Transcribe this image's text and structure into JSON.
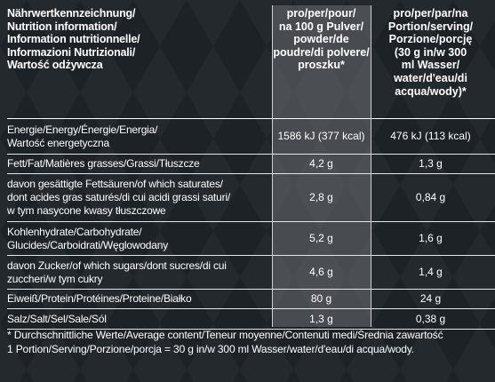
{
  "header": {
    "nutrient_label": [
      "Nährwertkennzeichnung/",
      "Nutrition information/",
      "Information nutritionnelle/",
      "Informazioni Nutrizionali/",
      "Wartość odżywcza"
    ],
    "per100_label": [
      "pro/per/pour/",
      "na 100 g Pulver/",
      "powder/de",
      "poudre/di polvere/",
      "proszku*"
    ],
    "perserving_label": [
      "pro/per/par/na",
      "Portion/serving/",
      "Porzione/porcję",
      "(30 g in/w 300",
      "ml Wasser/",
      "water/d'eau/di",
      "acqua/wody)*"
    ]
  },
  "rows": [
    {
      "label": [
        "Energie/Energy/Énergie/Energia/",
        "Wartość energetyczna"
      ],
      "per100": "1586 kJ (377 kcal)",
      "perserving": "476 kJ (113 kcal)"
    },
    {
      "label": [
        "Fett/Fat/Matières grasses/Grassi/Tłuszcze"
      ],
      "per100": "4,2 g",
      "perserving": "1,3 g"
    },
    {
      "label": [
        "davon gesättigte Fettsäuren/of which saturates/",
        "dont acides gras saturés/di cui acidi grassi saturi/",
        "w tym nasycone kwasy tłuszczowe"
      ],
      "per100": "2,8 g",
      "perserving": "0,84 g"
    },
    {
      "label": [
        "Kohlenhydrate/Carbohydrate/",
        "Glucides/Carboidrati/Węglowodany"
      ],
      "per100": "5,2 g",
      "perserving": "1,6 g"
    },
    {
      "label": [
        "davon Zucker/of which sugars/dont sucres/di cui",
        "zuccheri/w tym cukry"
      ],
      "per100": "4,6 g",
      "perserving": "1,4 g"
    },
    {
      "label": [
        "Eiweiß/Protein/Protéines/Proteine/Białko"
      ],
      "per100": "80 g",
      "perserving": "24 g"
    },
    {
      "label": [
        "Salz/Salt/Sel/Sale/Sól"
      ],
      "per100": "1,3 g",
      "perserving": "0,38 g"
    }
  ],
  "footnote": [
    "* Durchschnittliche Werte/Average content/Teneur moyenne/Contenuti medi/Średnia zawartość",
    "1 Portion/Serving/Porzione/porcja = 30 g in/w 300 ml Wasser/water/d'eau/di acqua/wody."
  ]
}
